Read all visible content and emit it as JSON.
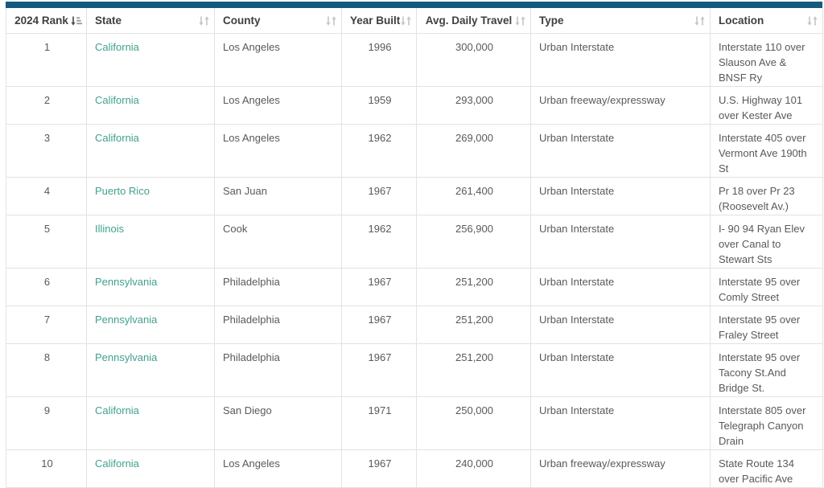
{
  "colors": {
    "accent_bar": "#155a7e",
    "state_link": "#41a08e",
    "header_text": "#3f3f3f",
    "body_text": "#595959",
    "border": "#e2e2e2",
    "sort_icon_inactive": "#c7c7c7",
    "sort_icon_active": "#4f4f4f"
  },
  "table": {
    "columns": [
      {
        "key": "rank",
        "label": "2024 Rank",
        "align": "center",
        "sorted": true,
        "sort_icon": "sort-amount-down-icon"
      },
      {
        "key": "state",
        "label": "State",
        "align": "left",
        "sorted": false,
        "sort_icon": "sort-both-icon"
      },
      {
        "key": "county",
        "label": "County",
        "align": "left",
        "sorted": false,
        "sort_icon": "sort-both-icon"
      },
      {
        "key": "year",
        "label": "Year Built",
        "align": "center",
        "sorted": false,
        "sort_icon": "sort-both-icon"
      },
      {
        "key": "adt",
        "label": "Avg. Daily Travel",
        "align": "center",
        "sorted": false,
        "sort_icon": "sort-both-icon"
      },
      {
        "key": "type",
        "label": "Type",
        "align": "left",
        "sorted": false,
        "sort_icon": "sort-both-icon"
      },
      {
        "key": "location",
        "label": "Location",
        "align": "left",
        "sorted": false,
        "sort_icon": "sort-both-icon"
      }
    ],
    "rows": [
      {
        "rank": "1",
        "state": "California",
        "county": "Los Angeles",
        "year": "1996",
        "adt": "300,000",
        "type": "Urban Interstate",
        "location": "Interstate 110 over Slauson Ave & BNSF Ry"
      },
      {
        "rank": "2",
        "state": "California",
        "county": "Los Angeles",
        "year": "1959",
        "adt": "293,000",
        "type": "Urban freeway/expressway",
        "location": "U.S. Highway 101 over Kester Ave"
      },
      {
        "rank": "3",
        "state": "California",
        "county": "Los Angeles",
        "year": "1962",
        "adt": "269,000",
        "type": "Urban Interstate",
        "location": "Interstate 405 over Vermont Ave 190th St"
      },
      {
        "rank": "4",
        "state": "Puerto Rico",
        "county": "San Juan",
        "year": "1967",
        "adt": "261,400",
        "type": "Urban Interstate",
        "location": "Pr 18 over Pr 23 (Roosevelt Av.)"
      },
      {
        "rank": "5",
        "state": "Illinois",
        "county": "Cook",
        "year": "1962",
        "adt": "256,900",
        "type": "Urban Interstate",
        "location": "I- 90 94 Ryan Elev over Canal to Stewart Sts"
      },
      {
        "rank": "6",
        "state": "Pennsylvania",
        "county": "Philadelphia",
        "year": "1967",
        "adt": "251,200",
        "type": "Urban Interstate",
        "location": "Interstate 95 over Comly Street"
      },
      {
        "rank": "7",
        "state": "Pennsylvania",
        "county": "Philadelphia",
        "year": "1967",
        "adt": "251,200",
        "type": "Urban Interstate",
        "location": "Interstate 95 over Fraley Street"
      },
      {
        "rank": "8",
        "state": "Pennsylvania",
        "county": "Philadelphia",
        "year": "1967",
        "adt": "251,200",
        "type": "Urban Interstate",
        "location": "Interstate 95 over Tacony St.And Bridge St."
      },
      {
        "rank": "9",
        "state": "California",
        "county": "San Diego",
        "year": "1971",
        "adt": "250,000",
        "type": "Urban Interstate",
        "location": "Interstate 805 over Telegraph Canyon Drain"
      },
      {
        "rank": "10",
        "state": "California",
        "county": "Los Angeles",
        "year": "1967",
        "adt": "240,000",
        "type": "Urban freeway/expressway",
        "location": "State Route 134 over Pacific Ave"
      }
    ]
  }
}
